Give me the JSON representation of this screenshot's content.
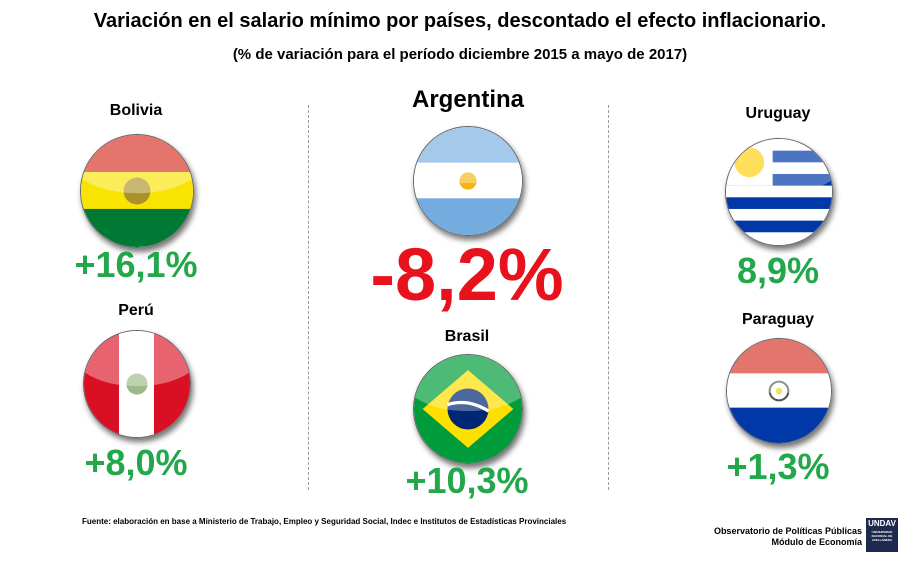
{
  "title": "Variación en el salario mínimo por países, descontado el efecto inflacionario.",
  "subtitle": "(% de variación para el período diciembre 2015 a mayo de 2017)",
  "chart_data": {
    "type": "table",
    "categories": [
      "Bolivia",
      "Perú",
      "Argentina",
      "Brasil",
      "Uruguay",
      "Paraguay"
    ],
    "values": [
      16.1,
      8.0,
      -8.2,
      10.3,
      8.9,
      1.3
    ],
    "value_labels": [
      "+16,1%",
      "+8,0%",
      "-8,2%",
      "+10,3%",
      "8,9%",
      "+1,3%"
    ],
    "colors": {
      "positive": "#22a84a",
      "negative": "#e8121c"
    }
  },
  "countries": {
    "bolivia": {
      "name": "Bolivia",
      "value": "+16,1%",
      "icon": "bolivia-flag-icon"
    },
    "peru": {
      "name": "Perú",
      "value": "+8,0%",
      "icon": "peru-flag-icon"
    },
    "argentina": {
      "name": "Argentina",
      "value": "-8,2%",
      "icon": "argentina-flag-icon"
    },
    "brasil": {
      "name": "Brasil",
      "value": "+10,3%",
      "icon": "brazil-flag-icon"
    },
    "uruguay": {
      "name": "Uruguay",
      "value": "8,9%",
      "icon": "uruguay-flag-icon"
    },
    "paraguay": {
      "name": "Paraguay",
      "value": "+1,3%",
      "icon": "paraguay-flag-icon"
    }
  },
  "footer": {
    "source": "Fuente: elaboración en base a Ministerio de Trabajo, Empleo y Seguridad Social, Indec e Institutos de Estadísticas Provinciales",
    "org_line1": "Observatorio de Políticas Públicas",
    "org_line2": "Módulo de Economía",
    "logo_text": "UNDAV",
    "logo_subtext": "UNIVERSIDAD NACIONAL DE AVELLANEDA"
  }
}
